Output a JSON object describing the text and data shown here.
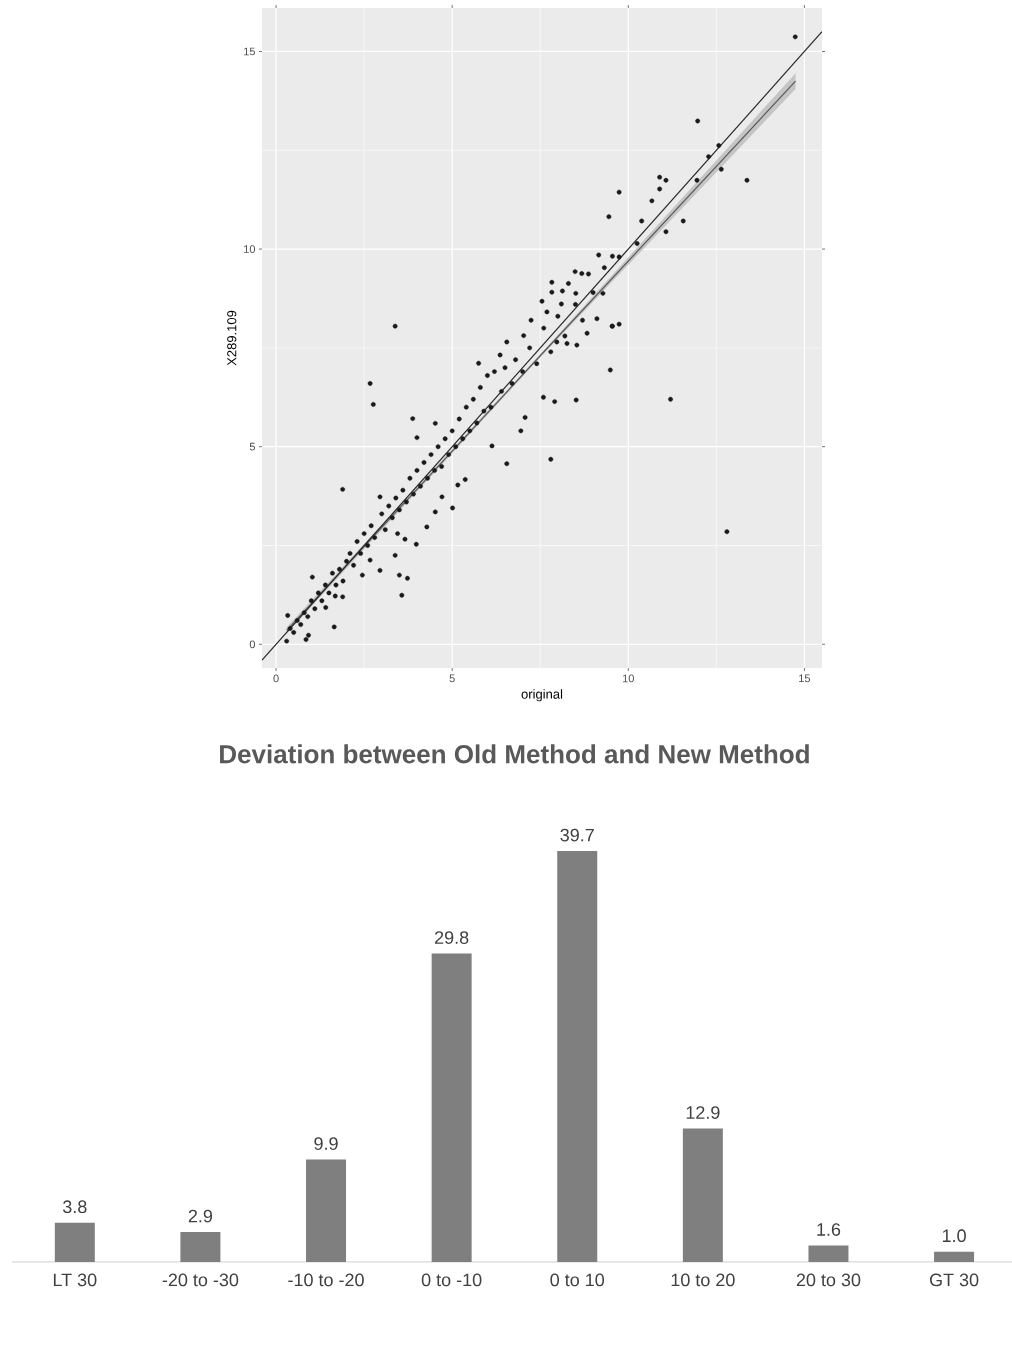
{
  "chart_data": [
    {
      "type": "scatter",
      "xlabel": "original",
      "ylabel": "X289.109",
      "xlim": [
        -0.4,
        15.5
      ],
      "ylim": [
        -0.6,
        16.1
      ],
      "xticks": [
        0,
        5,
        10,
        15
      ],
      "yticks": [
        0,
        5,
        10,
        15
      ],
      "grid": true,
      "series": [
        {
          "type": "scatter",
          "marker": "circle",
          "color": "#1a1a1a",
          "x": [
            14.74,
            11.97,
            12.57,
            12.28,
            12.64,
            13.37,
            11.95,
            10.89,
            11.07,
            10.89,
            10.67,
            9.74,
            9.45,
            10.38,
            11.56,
            11.07,
            10.25,
            9.55,
            9.74,
            9.32,
            9.28,
            9.55,
            9.74,
            3.38,
            9.16,
            8.49,
            8.68,
            8.87,
            7.83,
            8.3,
            7.83,
            8.13,
            8.51,
            7.55,
            8.1,
            7.69,
            7.24,
            9.11,
            8.83,
            9.54,
            7.03,
            6.55,
            8.26,
            8.54,
            7.97,
            6.36,
            5.75,
            9.49,
            7.59,
            7.91,
            8.52,
            2.67,
            2.76,
            3.88,
            4.52,
            4.0,
            6.13,
            6.55,
            7.8,
            6.95,
            7.07,
            5.37,
            5.16,
            5.01,
            4.71,
            4.52,
            4.28,
            3.98,
            3.66,
            3.45,
            3.38,
            3.5,
            3.73,
            3.57,
            2.95,
            2.45,
            1.89,
            2.95,
            1.03,
            1.41,
            1.65,
            0.33,
            0.92,
            0.85,
            0.3,
            1.89,
            1.68,
            2.67,
            12.8,
            11.2,
            0.4,
            0.5,
            0.6,
            0.7,
            0.8,
            0.9,
            1.0,
            1.1,
            1.2,
            1.3,
            1.4,
            1.5,
            1.6,
            1.7,
            1.8,
            1.9,
            2.0,
            2.1,
            2.2,
            2.3,
            2.4,
            2.5,
            2.6,
            2.7,
            2.8,
            3.0,
            3.1,
            3.2,
            3.3,
            3.4,
            3.5,
            3.6,
            3.7,
            3.8,
            3.9,
            4.0,
            4.1,
            4.2,
            4.3,
            4.4,
            4.5,
            4.6,
            4.7,
            4.8,
            4.9,
            5.0,
            5.1,
            5.2,
            5.3,
            5.4,
            5.5,
            5.6,
            5.7,
            5.8,
            5.9,
            6.0,
            6.1,
            6.2,
            6.4,
            6.5,
            6.7,
            6.8,
            7.0,
            7.2,
            7.4,
            7.6,
            7.8,
            8.0,
            8.2,
            8.5,
            8.7,
            9.0
          ],
          "values": [
            15.37,
            13.24,
            12.62,
            12.34,
            12.02,
            11.74,
            11.74,
            11.82,
            11.74,
            11.52,
            11.22,
            11.44,
            10.82,
            10.71,
            10.71,
            10.44,
            10.14,
            9.82,
            9.8,
            9.53,
            8.88,
            8.05,
            8.1,
            8.05,
            9.85,
            9.43,
            9.38,
            9.37,
            9.16,
            9.13,
            8.91,
            8.94,
            8.88,
            8.68,
            8.61,
            8.41,
            8.2,
            8.24,
            7.87,
            8.05,
            7.81,
            7.65,
            7.61,
            7.57,
            7.65,
            7.32,
            7.11,
            6.94,
            6.25,
            6.14,
            6.18,
            6.6,
            6.07,
            5.71,
            5.59,
            5.23,
            5.02,
            4.57,
            4.68,
            5.4,
            5.74,
            4.17,
            4.03,
            3.45,
            3.73,
            3.35,
            2.97,
            2.53,
            2.66,
            2.8,
            2.25,
            1.75,
            1.67,
            1.24,
            1.87,
            1.75,
            3.92,
            3.73,
            1.7,
            0.93,
            0.44,
            0.73,
            0.23,
            0.12,
            0.08,
            1.2,
            1.22,
            2.13,
            2.85,
            6.2,
            0.4,
            0.3,
            0.6,
            0.5,
            0.8,
            0.7,
            1.1,
            0.9,
            1.3,
            1.1,
            1.5,
            1.3,
            1.8,
            1.5,
            1.9,
            1.6,
            2.1,
            2.3,
            2.0,
            2.6,
            2.3,
            2.8,
            2.5,
            3.0,
            2.7,
            3.3,
            2.9,
            3.5,
            3.2,
            3.7,
            3.4,
            3.9,
            3.6,
            4.2,
            3.8,
            4.4,
            4.0,
            4.6,
            4.2,
            4.8,
            4.4,
            5.0,
            4.5,
            5.2,
            4.8,
            5.4,
            5.0,
            5.7,
            5.2,
            6.0,
            5.4,
            6.2,
            5.6,
            6.5,
            5.9,
            6.8,
            6.0,
            6.9,
            6.4,
            7.0,
            6.6,
            7.2,
            6.9,
            7.5,
            7.1,
            8.0,
            7.4,
            8.3,
            7.8,
            8.6,
            8.2,
            8.9
          ]
        },
        {
          "type": "line",
          "color": "#595959",
          "x": [
            0.3,
            7.5,
            14.75
          ],
          "values": [
            0.35,
            7.3,
            14.25
          ],
          "lower": [
            0.27,
            7.26,
            14.05
          ],
          "upper": [
            0.43,
            7.34,
            14.45
          ]
        },
        {
          "type": "line",
          "color": "#262626",
          "x": [
            -0.4,
            15.5
          ],
          "values": [
            -0.4,
            15.5
          ]
        }
      ]
    },
    {
      "type": "bar",
      "title": "Deviation between Old Method and New Method",
      "categories": [
        "LT 30",
        "-20 to -30",
        "-10 to -20",
        "0 to -10",
        "0 to 10",
        "10 to 20",
        "20 to 30",
        "GT 30"
      ],
      "values": [
        3.8,
        2.9,
        9.9,
        29.8,
        39.7,
        12.9,
        1.6,
        1.0
      ],
      "color": "#7f7f7f",
      "value_labels": [
        "3.8",
        "2.9",
        "9.9",
        "29.8",
        "39.7",
        "12.9",
        "1.6",
        "1.0"
      ]
    }
  ]
}
